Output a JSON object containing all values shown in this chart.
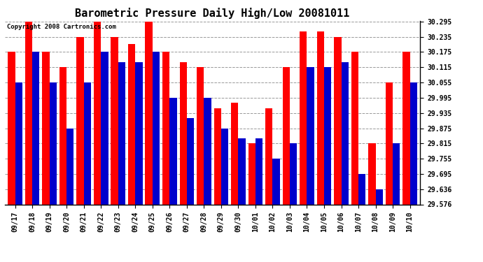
{
  "title": "Barometric Pressure Daily High/Low 20081011",
  "copyright": "Copyright 2008 Cartronics.com",
  "dates": [
    "09/17",
    "09/18",
    "09/19",
    "09/20",
    "09/21",
    "09/22",
    "09/23",
    "09/24",
    "09/25",
    "09/26",
    "09/27",
    "09/28",
    "09/29",
    "09/30",
    "10/01",
    "10/02",
    "10/03",
    "10/04",
    "10/05",
    "10/06",
    "10/07",
    "10/08",
    "10/09",
    "10/10"
  ],
  "highs": [
    30.175,
    30.295,
    30.175,
    30.115,
    30.235,
    30.295,
    30.235,
    30.205,
    30.295,
    30.175,
    30.135,
    30.115,
    29.955,
    29.975,
    29.815,
    29.955,
    30.115,
    30.255,
    30.255,
    30.235,
    30.175,
    29.815,
    30.055,
    30.175
  ],
  "lows": [
    30.055,
    30.175,
    30.055,
    29.875,
    30.055,
    30.175,
    30.135,
    30.135,
    30.175,
    29.995,
    29.915,
    29.995,
    29.875,
    29.835,
    29.835,
    29.755,
    29.815,
    30.115,
    30.115,
    30.135,
    29.695,
    29.635,
    29.815,
    30.055
  ],
  "high_color": "#ff0000",
  "low_color": "#0000cc",
  "bg_color": "#ffffff",
  "grid_color": "#999999",
  "ymin": 29.576,
  "ymax": 30.295,
  "yticks": [
    29.576,
    29.636,
    29.695,
    29.755,
    29.815,
    29.875,
    29.935,
    29.995,
    30.055,
    30.115,
    30.175,
    30.235,
    30.295
  ],
  "bar_width": 0.42,
  "title_fontsize": 11,
  "tick_fontsize": 7,
  "copyright_fontsize": 6.5
}
